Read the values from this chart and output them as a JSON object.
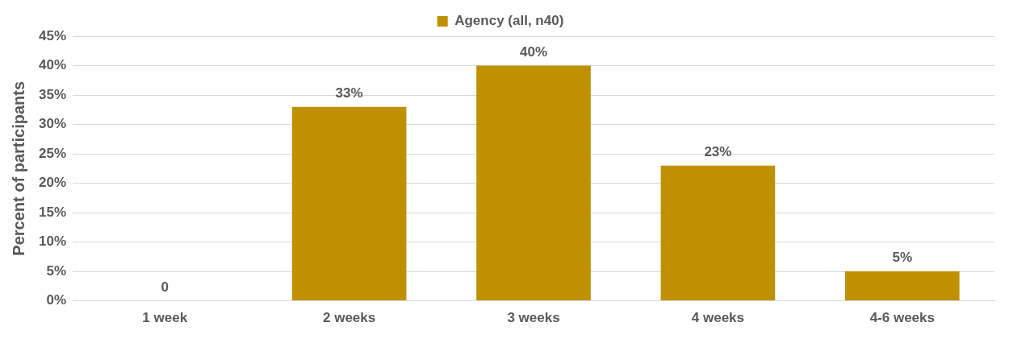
{
  "chart_data": {
    "type": "bar",
    "ylabel": "Percent of participants",
    "categories": [
      "1 week",
      "2 weeks",
      "3 weeks",
      "4 weeks",
      "4-6 weeks"
    ],
    "series": [
      {
        "name": "Agency (all, n40)",
        "color": "#bf9000",
        "values": [
          0,
          33,
          40,
          23,
          5
        ],
        "value_labels": [
          "0",
          "33%",
          "40%",
          "23%",
          "5%"
        ]
      }
    ],
    "ylim": [
      0,
      45
    ],
    "yticks": [
      {
        "value": 0,
        "label": "0%"
      },
      {
        "value": 5,
        "label": "5%"
      },
      {
        "value": 10,
        "label": "10%"
      },
      {
        "value": 15,
        "label": "15%"
      },
      {
        "value": 20,
        "label": "20%"
      },
      {
        "value": 25,
        "label": "25%"
      },
      {
        "value": 30,
        "label": "30%"
      },
      {
        "value": 35,
        "label": "35%"
      },
      {
        "value": 40,
        "label": "40%"
      },
      {
        "value": 45,
        "label": "45%"
      }
    ],
    "grid": "y",
    "legend": "top"
  }
}
